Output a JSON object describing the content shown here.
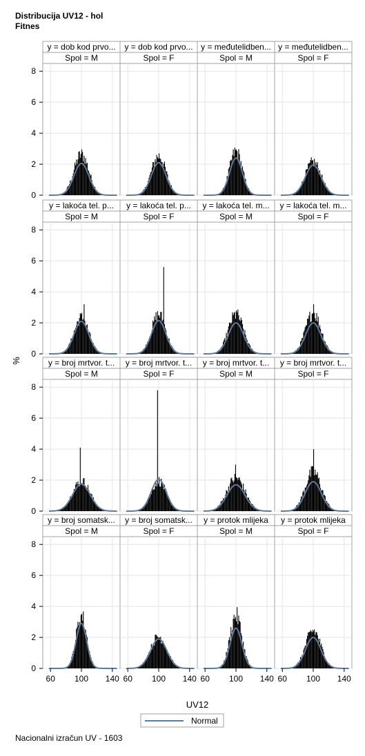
{
  "title_line1": "Distribucija UV12 - hol",
  "title_line2": "Fitnes",
  "footer": "Nacionalni izračun UV - 1603",
  "chart_data": {
    "type": "histogram-panel",
    "xlabel": "UV12",
    "ylabel": "%",
    "xlim": [
      50,
      150
    ],
    "ylim": [
      0,
      8.5
    ],
    "xticks": [
      60,
      100,
      140
    ],
    "yticks": [
      0,
      2,
      4,
      6,
      8
    ],
    "grid": true,
    "legend": {
      "position": "bottom",
      "entries": [
        "Normal"
      ]
    },
    "normal_color": "#5f7a99",
    "bar_color": "#000000",
    "panels": [
      [
        {
          "row_label": "y = dob kod prvo...",
          "col_label": "Spol = M",
          "curve_peak": 2.05,
          "curve_sd": 9.7,
          "hist_peak": 2.7,
          "spike_x": null,
          "spike_h": null
        },
        {
          "row_label": "y = dob kod prvo...",
          "col_label": "Spol = F",
          "curve_peak": 2.1,
          "curve_sd": 9.5,
          "hist_peak": 2.6,
          "spike_x": null,
          "spike_h": null
        },
        {
          "row_label": "y = međutelidben...",
          "col_label": "Spol = M",
          "curve_peak": 2.4,
          "curve_sd": 8.3,
          "hist_peak": 2.9,
          "spike_x": null,
          "spike_h": null
        },
        {
          "row_label": "y = međutelidben...",
          "col_label": "Spol = F",
          "curve_peak": 1.95,
          "curve_sd": 10.2,
          "hist_peak": 2.2,
          "spike_x": null,
          "spike_h": null
        }
      ],
      [
        {
          "row_label": "y = lakoća tel. p...",
          "col_label": "Spol = M",
          "curve_peak": 2.1,
          "curve_sd": 9.5,
          "hist_peak": 2.4,
          "spike_x": 103,
          "spike_h": 3.2
        },
        {
          "row_label": "y = lakoća tel. p...",
          "col_label": "Spol = F",
          "curve_peak": 2.15,
          "curve_sd": 9.3,
          "hist_peak": 2.6,
          "spike_x": 106,
          "spike_h": 5.6
        },
        {
          "row_label": "y = lakoća tel. m...",
          "col_label": "Spol = M",
          "curve_peak": 2.0,
          "curve_sd": 10.0,
          "hist_peak": 2.6,
          "spike_x": 100,
          "spike_h": 2.8
        },
        {
          "row_label": "y = lakoća tel. m...",
          "col_label": "Spol = F",
          "curve_peak": 2.0,
          "curve_sd": 10.0,
          "hist_peak": 2.7,
          "spike_x": 100,
          "spike_h": 3.2
        }
      ],
      [
        {
          "row_label": "y = broj mrtvor. t...",
          "col_label": "Spol = M",
          "curve_peak": 1.75,
          "curve_sd": 11.4,
          "hist_peak": 2.0,
          "spike_x": 98,
          "spike_h": 4.1
        },
        {
          "row_label": "y = broj mrtvor. t...",
          "col_label": "Spol = F",
          "curve_peak": 2.05,
          "curve_sd": 9.7,
          "hist_peak": 2.0,
          "spike_x": 98,
          "spike_h": 7.8
        },
        {
          "row_label": "y = broj mrtvor. t...",
          "col_label": "Spol = M",
          "curve_peak": 1.7,
          "curve_sd": 11.7,
          "hist_peak": 2.2,
          "spike_x": 99,
          "spike_h": 3.0
        },
        {
          "row_label": "y = broj mrtvor. t...",
          "col_label": "Spol = F",
          "curve_peak": 1.9,
          "curve_sd": 10.5,
          "hist_peak": 2.6,
          "spike_x": 100,
          "spike_h": 4.0
        }
      ],
      [
        {
          "row_label": "y = broj somatsk...",
          "col_label": "Spol = M",
          "curve_peak": 2.9,
          "curve_sd": 6.9,
          "hist_peak": 3.5,
          "spike_x": null,
          "spike_h": null
        },
        {
          "row_label": "y = broj somatsk...",
          "col_label": "Spol = F",
          "curve_peak": 1.9,
          "curve_sd": 10.5,
          "hist_peak": 2.1,
          "spike_x": null,
          "spike_h": null
        },
        {
          "row_label": "y = protok mlijeka",
          "col_label": "Spol = M",
          "curve_peak": 2.6,
          "curve_sd": 7.7,
          "hist_peak": 3.5,
          "spike_x": null,
          "spike_h": null
        },
        {
          "row_label": "y = protok mlijeka",
          "col_label": "Spol = F",
          "curve_peak": 2.0,
          "curve_sd": 10.0,
          "hist_peak": 2.5,
          "spike_x": null,
          "spike_h": null
        }
      ]
    ]
  }
}
